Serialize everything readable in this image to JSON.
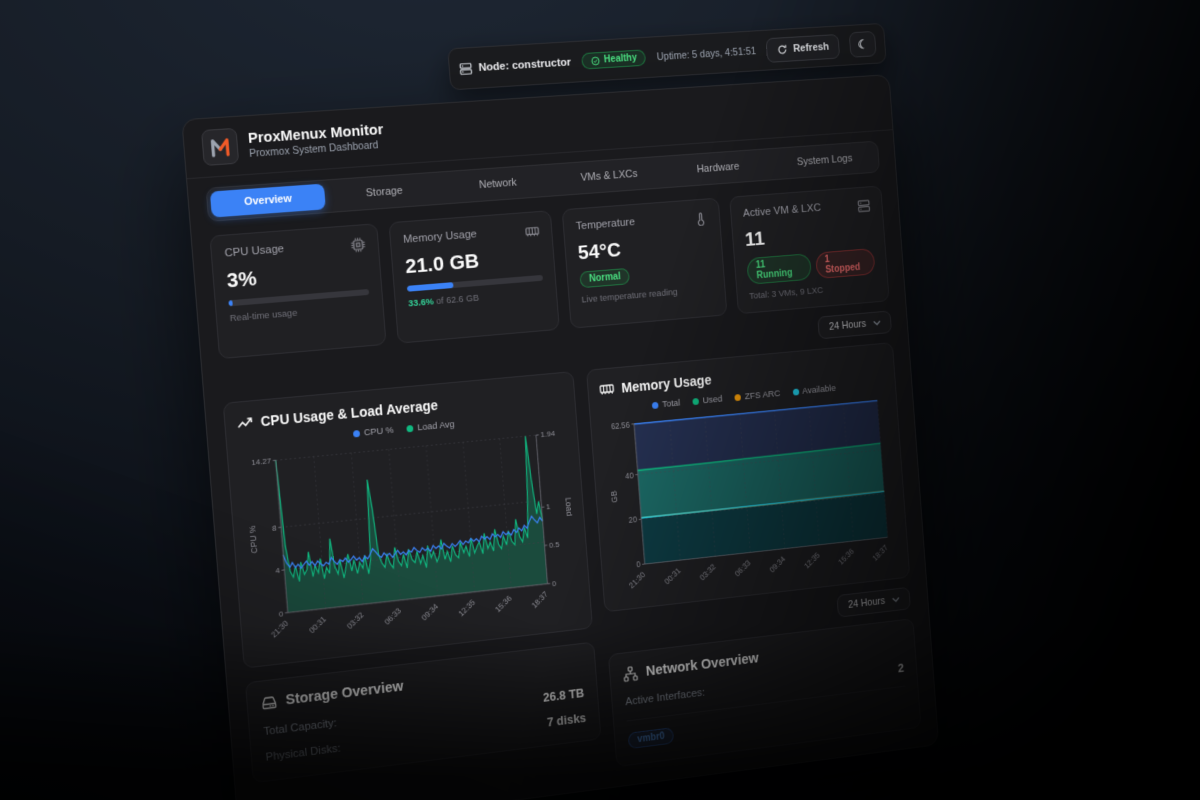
{
  "topbar": {
    "node": "Node: constructor",
    "health": "Healthy",
    "uptime": "Uptime: 5 days, 4:51:51",
    "refresh": "Refresh"
  },
  "header": {
    "title": "ProxMenux Monitor",
    "subtitle": "Proxmox System Dashboard"
  },
  "nav": {
    "active_tab": "Overview",
    "tabs": [
      {
        "label": "Overview"
      },
      {
        "label": "Storage"
      },
      {
        "label": "Network"
      },
      {
        "label": "VMs & LXCs"
      },
      {
        "label": "Hardware"
      },
      {
        "label": "System Logs"
      }
    ]
  },
  "stats": {
    "cpu": {
      "title": "CPU Usage",
      "value": "3%",
      "percent": 3,
      "subtext": "Real-time usage"
    },
    "memory": {
      "title": "Memory Usage",
      "value": "21.0 GB",
      "percent": 33.6,
      "highlight": "33.6%",
      "subtext": " of 62.6 GB"
    },
    "temperature": {
      "title": "Temperature",
      "value": "54°C",
      "badge": "Normal",
      "subtext": "Live temperature reading"
    },
    "vms": {
      "title": "Active VM & LXC",
      "value": "11",
      "running": "11 Running",
      "stopped": "1 Stopped",
      "subtext": "Total: 3 VMs, 9 LXC"
    }
  },
  "time_range": {
    "selected": "24 Hours"
  },
  "storage": {
    "title": "Storage Overview",
    "rows": [
      {
        "label": "Total Capacity:",
        "value": "26.8 TB"
      },
      {
        "label": "Physical Disks:",
        "value": "7 disks"
      }
    ]
  },
  "network": {
    "title": "Network Overview",
    "interfaces_label": "Active Interfaces:",
    "interfaces_count": "2",
    "badges": [
      {
        "label": "vmbr0"
      }
    ]
  },
  "colors": {
    "accent": "#3b82f6",
    "green": "#10b981",
    "cyan": "#22d3ee",
    "orange": "#f59e0b",
    "red": "#ef4444"
  },
  "chart_data": [
    {
      "type": "area",
      "title": "CPU Usage & Load Average",
      "x_labels": [
        "21:30",
        "00:31",
        "03:32",
        "06:33",
        "09:34",
        "12:35",
        "15:36",
        "18:37"
      ],
      "y_left": {
        "label": "CPU %",
        "ticks": [
          0,
          4,
          8,
          14.27
        ],
        "max": 14.27
      },
      "y_right": {
        "label": "Load",
        "ticks": [
          0,
          0.5,
          1,
          1.94
        ],
        "max": 1.94
      },
      "series": [
        {
          "name": "CPU %",
          "color": "#3b82f6",
          "fill": "none",
          "axis": "left",
          "values": [
            5.4,
            4.6,
            4.2,
            4.6,
            4.1,
            4.4,
            4.0,
            4.3,
            4.6,
            4.2,
            4.5,
            4.1,
            4.5,
            4.2,
            4.0,
            4.3,
            4.1,
            4.7,
            4.3,
            4.0,
            4.4,
            4.2,
            4.5,
            4.1,
            4.3,
            4.6,
            4.2,
            4.4,
            4.0,
            4.5,
            4.2,
            4.6,
            5.1,
            4.8,
            4.4,
            4.2,
            4.6,
            4.3,
            4.5,
            4.1,
            4.4,
            4.7,
            4.3,
            4.5,
            4.2,
            4.6,
            4.4,
            4.8,
            4.5,
            4.3,
            4.7,
            4.4,
            4.6,
            4.3,
            4.8,
            4.5,
            4.7,
            4.4,
            4.9,
            4.6,
            4.4,
            4.8,
            4.5,
            4.7,
            5.0,
            4.6,
            4.9,
            4.7,
            5.1,
            4.8,
            5.0,
            4.7,
            5.2,
            4.9,
            5.1,
            4.8,
            5.3,
            5.0,
            5.2,
            4.9,
            5.4,
            5.1,
            5.3,
            5.0,
            5.5,
            5.2,
            5.6,
            5.3,
            5.8,
            5.5,
            6.1,
            6.6,
            6.2,
            5.9,
            6.4,
            6.0
          ]
        },
        {
          "name": "Load Avg",
          "color": "#10b981",
          "fill": "rgba(16,185,129,0.28)",
          "axis": "right",
          "values": [
            1.94,
            0.85,
            0.52,
            0.44,
            0.58,
            0.38,
            0.62,
            0.46,
            0.52,
            0.74,
            0.42,
            0.56,
            0.46,
            0.64,
            0.38,
            0.52,
            0.44,
            0.88,
            0.52,
            0.42,
            0.6,
            0.36,
            0.5,
            0.66,
            0.44,
            0.58,
            0.4,
            0.54,
            0.46,
            0.62,
            0.38,
            0.56,
            1.58,
            1.22,
            0.62,
            0.5,
            0.44,
            0.6,
            0.48,
            0.42,
            0.68,
            0.5,
            0.44,
            0.58,
            0.4,
            0.64,
            0.5,
            0.46,
            0.6,
            0.44,
            0.54,
            0.38,
            0.66,
            0.5,
            0.58,
            0.44,
            0.52,
            0.72,
            0.46,
            0.56,
            0.42,
            0.62,
            0.5,
            0.46,
            0.66,
            0.52,
            0.6,
            0.46,
            0.7,
            0.5,
            0.58,
            0.64,
            0.48,
            0.74,
            0.54,
            0.62,
            0.5,
            0.78,
            0.58,
            0.52,
            0.68,
            0.56,
            0.74,
            0.6,
            0.55,
            0.88,
            0.65,
            0.58,
            0.76,
            0.62,
            1.12,
            1.94,
            1.35,
            0.92,
            1.08,
            0.82
          ]
        }
      ]
    },
    {
      "type": "area",
      "title": "Memory Usage",
      "x_labels": [
        "21:30",
        "00:31",
        "03:32",
        "06:33",
        "09:34",
        "12:35",
        "15:36",
        "18:37"
      ],
      "ylabel": "GB",
      "y_ticks": [
        0,
        20,
        40,
        62.56
      ],
      "ymax": 62.56,
      "series": [
        {
          "name": "Total",
          "color": "#3b82f6",
          "fill": "rgba(38,50,86,0.92)",
          "values": [
            62.56,
            62.56,
            62.56,
            62.56,
            62.56,
            62.56,
            62.56,
            62.56
          ]
        },
        {
          "name": "Used",
          "color": "#10b981",
          "fill": "rgba(16,185,129,0.42)",
          "values": [
            41.8,
            41.9,
            42.0,
            42.2,
            42.3,
            42.5,
            42.7,
            43.0
          ]
        },
        {
          "name": "ZFS ARC",
          "color": "#f59e0b",
          "fill": "none",
          "values": [
            20.6,
            20.7,
            20.7,
            20.8,
            20.8,
            20.9,
            20.9,
            21.0
          ]
        },
        {
          "name": "Available",
          "color": "#22d3ee",
          "fill": "rgba(9,42,54,0.7)",
          "values": [
            20.6,
            20.7,
            20.7,
            20.8,
            20.8,
            20.9,
            20.9,
            21.0
          ]
        }
      ]
    }
  ]
}
